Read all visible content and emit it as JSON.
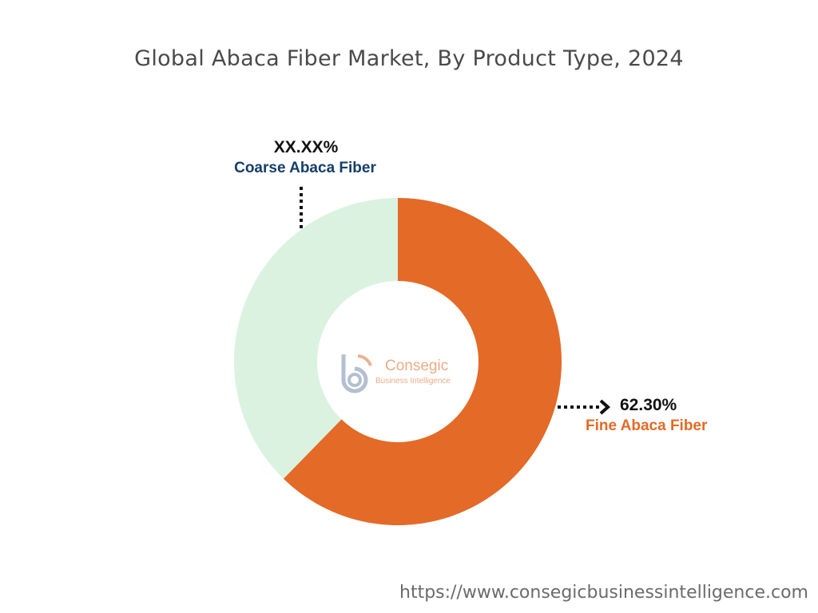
{
  "chart_data": {
    "type": "pie",
    "title": "Global Abaca Fiber Market, By Product Type, 2024",
    "style": "donut",
    "slices": [
      {
        "label": "Fine Abaca Fiber",
        "value": 62.3,
        "value_label": "62.30%",
        "color": "#e36a27"
      },
      {
        "label": "Coarse Abaca Fiber",
        "value": 37.7,
        "value_label": "XX.XX%",
        "color": "#dbf2e1"
      }
    ],
    "label_colors": {
      "Fine Abaca Fiber": "#e36a27",
      "Coarse Abaca Fiber": "#153e6b"
    }
  },
  "logo": {
    "name": "Consegic",
    "tagline": "Business Intelligence"
  },
  "footer": {
    "url": "https://www.consegicbusinessintelligence.com"
  }
}
